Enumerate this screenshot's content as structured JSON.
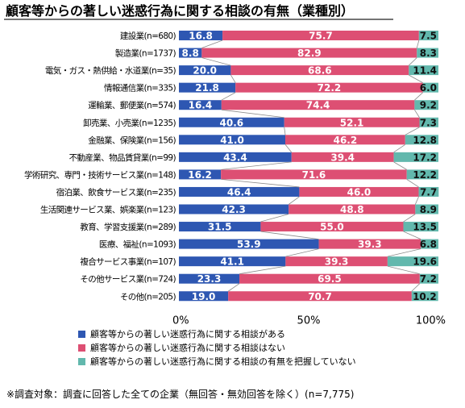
{
  "chart_data": {
    "type": "bar",
    "stacked": true,
    "orientation": "horizontal",
    "title": "顧客等からの著しい迷惑行為に関する相談の有無（業種別）",
    "categories": [
      "建設業(n=680)",
      "製造業(n=1737)",
      "電気・ガス・熱供給・水道業(n=35)",
      "情報通信業(n=335)",
      "運輸業、郵便業(n=574)",
      "卸売業、小売業(n=1235)",
      "金融業、保険業(n=156)",
      "不動産業、物品賃貸業(n=99)",
      "学術研究、専門・技術サービス業(n=148)",
      "宿泊業、飲食サービス業(n=235)",
      "生活関連サービス業、娯楽業(n=123)",
      "教育、学習支援業(n=289)",
      "医療、福祉(n=1093)",
      "複合サービス事業(n=107)",
      "その他サービス業(n=724)",
      "その他(n=205)"
    ],
    "series": [
      {
        "name": "顧客等からの著しい迷惑行為に関する相談がある",
        "color": "#2e57b2",
        "values": [
          16.8,
          8.8,
          20.0,
          21.8,
          16.4,
          40.6,
          41.0,
          43.4,
          16.2,
          46.4,
          42.3,
          31.5,
          53.9,
          41.1,
          23.3,
          19.0
        ]
      },
      {
        "name": "顧客等からの著しい迷惑行為に関する相談はない",
        "color": "#dd4f73",
        "values": [
          75.7,
          82.9,
          68.6,
          72.2,
          74.4,
          52.1,
          46.2,
          39.4,
          71.6,
          46.0,
          48.8,
          55.0,
          39.3,
          39.3,
          69.5,
          70.7
        ]
      },
      {
        "name": "顧客等からの著しい迷惑行為に関する相談の有無を把握していない",
        "color": "#62b8ad",
        "values": [
          7.5,
          8.3,
          11.4,
          6.0,
          9.2,
          7.3,
          12.8,
          17.2,
          12.2,
          7.7,
          8.9,
          13.5,
          6.8,
          19.6,
          7.2,
          10.2
        ]
      }
    ],
    "x_ticks": [
      "0%",
      "50%",
      "100%"
    ],
    "xlim": [
      0,
      100
    ],
    "grid": false,
    "legend_position": "bottom-left",
    "note": "※調査対象：調査に回答した全ての企業（無回答・無効回答を除く）(n=7,775)"
  }
}
